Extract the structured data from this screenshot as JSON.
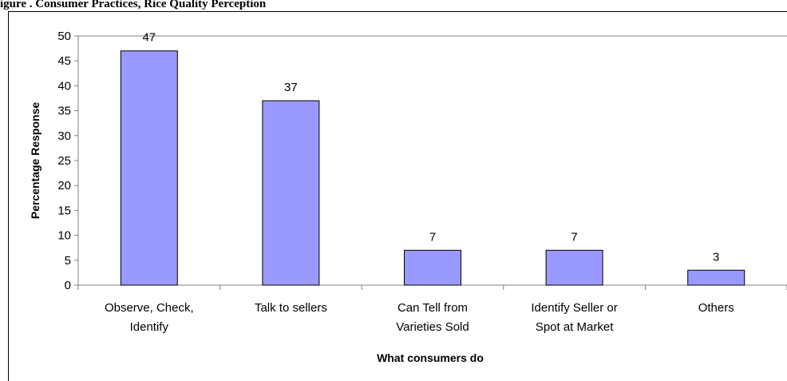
{
  "heading": "igure . Consumer Practices, Rice Quality Perception",
  "chart_data": {
    "type": "bar",
    "categories": [
      [
        "Observe, Check,",
        "Identify"
      ],
      [
        "Talk to sellers"
      ],
      [
        "Can Tell from",
        "Varieties Sold"
      ],
      [
        "Identify Seller or",
        "Spot at Market"
      ],
      [
        "Others"
      ]
    ],
    "values": [
      47,
      37,
      7,
      7,
      3
    ],
    "data_labels": [
      "47",
      "37",
      "7",
      "7",
      "3"
    ],
    "xlabel": "What consumers do",
    "ylabel": "Percentage Response",
    "ylim": [
      0,
      50
    ],
    "yticks": [
      0,
      5,
      10,
      15,
      20,
      25,
      30,
      35,
      40,
      45,
      50
    ],
    "grid": false,
    "colors": {
      "bar_fill": "#9999ff",
      "bar_stroke": "#000000",
      "axis": "#808080"
    }
  }
}
